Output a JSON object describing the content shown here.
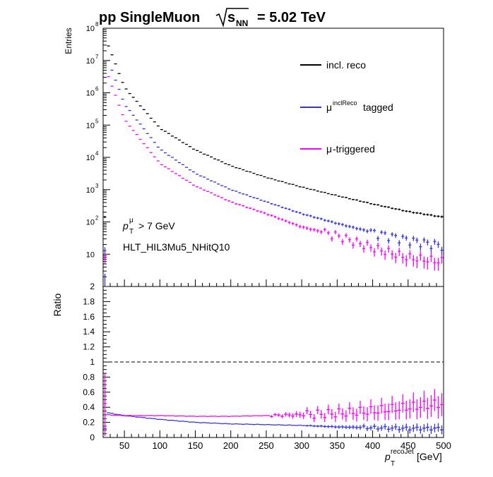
{
  "title": {
    "prefix": "pp SingleMuon",
    "sqrt_sub": "NN",
    "suffix": "= 5.02 TeV"
  },
  "axes": {
    "top_ylabel": "Entries",
    "bottom_ylabel": "Ratio",
    "xlabel_sub": "T",
    "xlabel_sup": "recoJet",
    "xlabel_unit": "[GeV]",
    "top_ytick_decades": [
      "10",
      "10",
      "10",
      "10",
      "10",
      "10",
      "10",
      "10"
    ],
    "top_ytick_exponents": [
      "",
      "2",
      "3",
      "4",
      "5",
      "6",
      "7",
      "8"
    ],
    "bottom_yticks": [
      "0",
      "0.2",
      "0.4",
      "0.6",
      "0.8",
      "1",
      "1.2",
      "1.4",
      "1.6",
      "1.8",
      "2"
    ],
    "xticks": [
      "50",
      "100",
      "150",
      "200",
      "250",
      "300",
      "350",
      "400",
      "450",
      "500"
    ]
  },
  "legend": {
    "incl": "incl. reco",
    "tagged_sup": "inclReco",
    "tagged_text": "tagged",
    "trig_text": "-triggered"
  },
  "annotations": {
    "cut_sup": "μ",
    "cut_sub": "T",
    "cut_text": "> 7 GeV",
    "trigger": "HLT_HIL3Mu5_NHitQ10"
  },
  "colors": {
    "incl": "#000000",
    "tagged": "#3333dd",
    "triggered": "#ff00ff"
  },
  "chart_data": [
    {
      "type": "scatter",
      "name": "top",
      "xlim": [
        20,
        500
      ],
      "ylim": [
        1,
        100000000
      ],
      "yscale": "log",
      "bin_width": 5,
      "grid": false,
      "legend_position": "top-right",
      "series": [
        {
          "name": "incl. reco",
          "key": "incl",
          "anchors": [
            [
              25,
              40000000
            ],
            [
              50,
              1500000
            ],
            [
              100,
              80000
            ],
            [
              150,
              17000
            ],
            [
              200,
              5500
            ],
            [
              250,
              2400
            ],
            [
              300,
              1200
            ],
            [
              350,
              650
            ],
            [
              400,
              360
            ],
            [
              450,
              210
            ],
            [
              500,
              140
            ]
          ]
        },
        {
          "name": "μinclReco tagged",
          "key": "tagged",
          "anchors": [
            [
              25,
              14000000
            ],
            [
              50,
              450000
            ],
            [
              100,
              18000
            ],
            [
              150,
              3200
            ],
            [
              200,
              1000
            ],
            [
              250,
              420
            ],
            [
              300,
              180
            ],
            [
              350,
              90
            ],
            [
              400,
              48
            ],
            [
              450,
              28
            ],
            [
              500,
              18
            ]
          ]
        },
        {
          "name": "μ-triggered",
          "key": "triggered",
          "anchors": [
            [
              25,
              4500000
            ],
            [
              50,
              150000
            ],
            [
              100,
              6500
            ],
            [
              150,
              1300
            ],
            [
              200,
              420
            ],
            [
              250,
              180
            ],
            [
              300,
              70
            ],
            [
              350,
              38
            ],
            [
              400,
              16
            ],
            [
              450,
              8
            ],
            [
              500,
              6
            ]
          ]
        }
      ]
    },
    {
      "type": "scatter",
      "name": "ratio",
      "xlim": [
        20,
        500
      ],
      "ylim": [
        0,
        2
      ],
      "reference_line": 1,
      "grid": false,
      "series": [
        {
          "name": "tagged / incl",
          "key": "tagged",
          "anchors": [
            [
              25,
              0.33
            ],
            [
              50,
              0.29
            ],
            [
              100,
              0.24
            ],
            [
              150,
              0.2
            ],
            [
              200,
              0.18
            ],
            [
              250,
              0.17
            ],
            [
              300,
              0.16
            ],
            [
              350,
              0.14
            ],
            [
              400,
              0.13
            ],
            [
              450,
              0.12
            ],
            [
              500,
              0.12
            ]
          ]
        },
        {
          "name": "triggered / incl",
          "key": "triggered",
          "anchors": [
            [
              25,
              0.3
            ],
            [
              50,
              0.29
            ],
            [
              100,
              0.29
            ],
            [
              150,
              0.28
            ],
            [
              200,
              0.28
            ],
            [
              250,
              0.29
            ],
            [
              300,
              0.3
            ],
            [
              350,
              0.32
            ],
            [
              400,
              0.35
            ],
            [
              450,
              0.4
            ],
            [
              500,
              0.45
            ]
          ]
        }
      ]
    }
  ]
}
